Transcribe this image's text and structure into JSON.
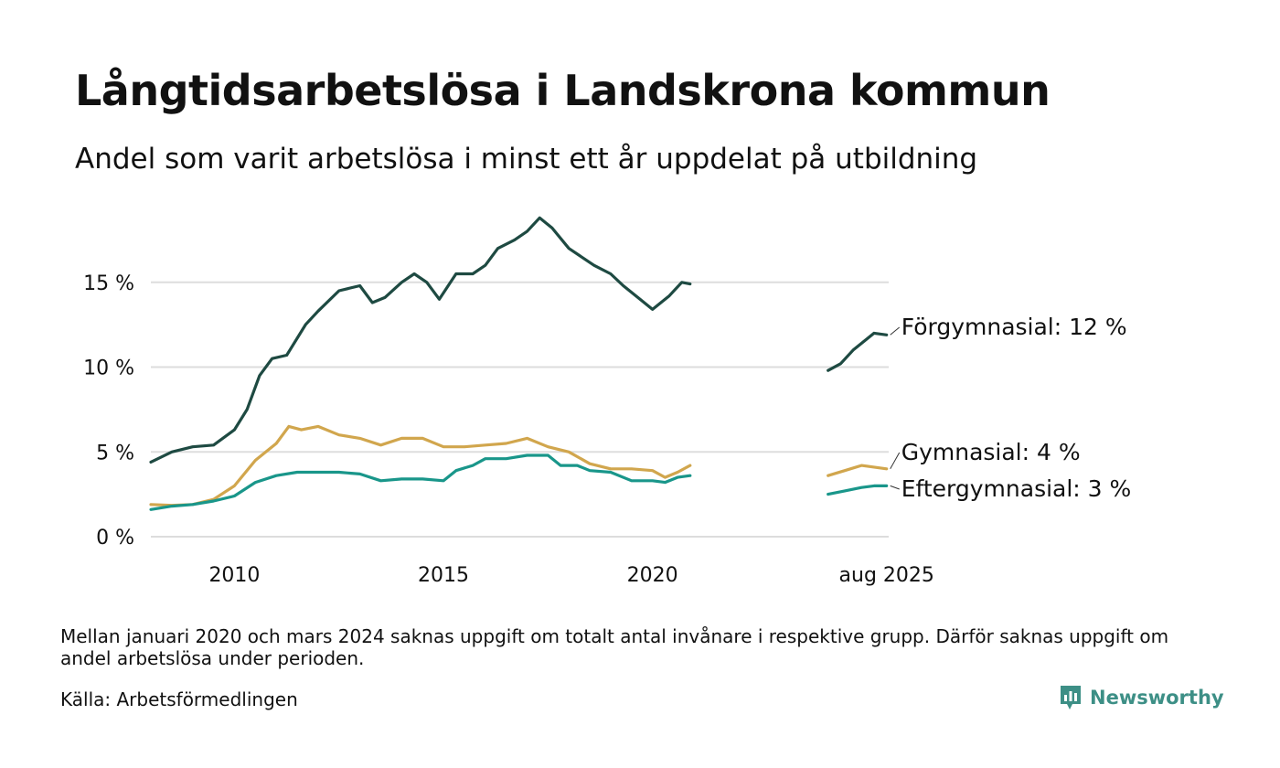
{
  "header": {
    "title": "Långtidsarbetslösa i Landskrona kommun",
    "subtitle": "Andel som varit arbetslösa i minst ett år uppdelat på utbildning"
  },
  "footer": {
    "note": "Mellan januari 2020 och mars 2024 saknas uppgift om totalt antal invånare i respektive grupp. Därför saknas uppgift om andel arbetslösa under perioden.",
    "source": "Källa: Arbetsförmedlingen",
    "brand": "Newsworthy"
  },
  "colors": {
    "forgymnasial": "#1e4a42",
    "gymnasial": "#d1a64d",
    "eftergymnasial": "#19968a",
    "grid": "#dddddd",
    "brand": "#3d8f86"
  },
  "chart_data": {
    "type": "line",
    "x_unit": "decimal year",
    "xlim": [
      2008.0,
      2025.65
    ],
    "ylim": [
      0,
      20
    ],
    "grid": true,
    "legend": "inline end labels",
    "x_ticks": [
      {
        "value": 2010,
        "label": "2010"
      },
      {
        "value": 2015,
        "label": "2015"
      },
      {
        "value": 2020,
        "label": "2020"
      },
      {
        "value": 2025.6,
        "label": "aug 2025"
      }
    ],
    "y_ticks": [
      {
        "value": 0,
        "label": "0 %"
      },
      {
        "value": 5,
        "label": "5 %"
      },
      {
        "value": 10,
        "label": "10 %"
      },
      {
        "value": 15,
        "label": "15 %"
      }
    ],
    "series": [
      {
        "name": "Förgymnasial",
        "end_label": "Förgymnasial: 12 %",
        "color_key": "forgymnasial",
        "segments": [
          [
            [
              2008.0,
              4.4
            ],
            [
              2008.5,
              5.0
            ],
            [
              2009.0,
              5.3
            ],
            [
              2009.5,
              5.4
            ],
            [
              2010.0,
              6.3
            ],
            [
              2010.3,
              7.5
            ],
            [
              2010.6,
              9.5
            ],
            [
              2010.9,
              10.5
            ],
            [
              2011.25,
              10.7
            ],
            [
              2011.7,
              12.5
            ],
            [
              2012.0,
              13.3
            ],
            [
              2012.5,
              14.5
            ],
            [
              2013.0,
              14.8
            ],
            [
              2013.3,
              13.8
            ],
            [
              2013.6,
              14.1
            ],
            [
              2014.0,
              15.0
            ],
            [
              2014.3,
              15.5
            ],
            [
              2014.6,
              15.0
            ],
            [
              2014.9,
              14.0
            ],
            [
              2015.3,
              15.5
            ],
            [
              2015.7,
              15.5
            ],
            [
              2016.0,
              16.0
            ],
            [
              2016.3,
              17.0
            ],
            [
              2016.7,
              17.5
            ],
            [
              2017.0,
              18.0
            ],
            [
              2017.3,
              18.8
            ],
            [
              2017.6,
              18.2
            ],
            [
              2018.0,
              17.0
            ],
            [
              2018.3,
              16.5
            ],
            [
              2018.6,
              16.0
            ],
            [
              2019.0,
              15.5
            ],
            [
              2019.3,
              14.8
            ],
            [
              2019.7,
              14.0
            ],
            [
              2020.0,
              13.4
            ],
            [
              2020.4,
              14.2
            ],
            [
              2020.7,
              15.0
            ],
            [
              2020.9,
              14.9
            ]
          ],
          [
            [
              2024.2,
              9.8
            ],
            [
              2024.5,
              10.2
            ],
            [
              2024.8,
              11.0
            ],
            [
              2025.1,
              11.6
            ],
            [
              2025.3,
              12.0
            ],
            [
              2025.6,
              11.9
            ]
          ]
        ]
      },
      {
        "name": "Gymnasial",
        "end_label": "Gymnasial:  4 %",
        "color_key": "gymnasial",
        "segments": [
          [
            [
              2008.0,
              1.9
            ],
            [
              2008.5,
              1.85
            ],
            [
              2009.0,
              1.9
            ],
            [
              2009.5,
              2.2
            ],
            [
              2010.0,
              3.0
            ],
            [
              2010.5,
              4.5
            ],
            [
              2011.0,
              5.5
            ],
            [
              2011.3,
              6.5
            ],
            [
              2011.6,
              6.3
            ],
            [
              2012.0,
              6.5
            ],
            [
              2012.5,
              6.0
            ],
            [
              2013.0,
              5.8
            ],
            [
              2013.5,
              5.4
            ],
            [
              2014.0,
              5.8
            ],
            [
              2014.5,
              5.8
            ],
            [
              2015.0,
              5.3
            ],
            [
              2015.5,
              5.3
            ],
            [
              2016.0,
              5.4
            ],
            [
              2016.5,
              5.5
            ],
            [
              2017.0,
              5.8
            ],
            [
              2017.5,
              5.3
            ],
            [
              2018.0,
              5.0
            ],
            [
              2018.5,
              4.3
            ],
            [
              2019.0,
              4.0
            ],
            [
              2019.5,
              4.0
            ],
            [
              2020.0,
              3.9
            ],
            [
              2020.3,
              3.5
            ],
            [
              2020.6,
              3.8
            ],
            [
              2020.9,
              4.2
            ]
          ],
          [
            [
              2024.2,
              3.6
            ],
            [
              2024.6,
              3.9
            ],
            [
              2025.0,
              4.2
            ],
            [
              2025.3,
              4.1
            ],
            [
              2025.6,
              4.0
            ]
          ]
        ]
      },
      {
        "name": "Eftergymnasial",
        "end_label": "Eftergymnasial:  3 %",
        "color_key": "eftergymnasial",
        "segments": [
          [
            [
              2008.0,
              1.6
            ],
            [
              2008.5,
              1.8
            ],
            [
              2009.0,
              1.9
            ],
            [
              2009.5,
              2.1
            ],
            [
              2010.0,
              2.4
            ],
            [
              2010.5,
              3.2
            ],
            [
              2011.0,
              3.6
            ],
            [
              2011.5,
              3.8
            ],
            [
              2012.0,
              3.8
            ],
            [
              2012.5,
              3.8
            ],
            [
              2013.0,
              3.7
            ],
            [
              2013.5,
              3.3
            ],
            [
              2014.0,
              3.4
            ],
            [
              2014.5,
              3.4
            ],
            [
              2015.0,
              3.3
            ],
            [
              2015.3,
              3.9
            ],
            [
              2015.7,
              4.2
            ],
            [
              2016.0,
              4.6
            ],
            [
              2016.5,
              4.6
            ],
            [
              2017.0,
              4.8
            ],
            [
              2017.5,
              4.8
            ],
            [
              2017.8,
              4.2
            ],
            [
              2018.2,
              4.2
            ],
            [
              2018.5,
              3.9
            ],
            [
              2019.0,
              3.8
            ],
            [
              2019.5,
              3.3
            ],
            [
              2020.0,
              3.3
            ],
            [
              2020.3,
              3.2
            ],
            [
              2020.6,
              3.5
            ],
            [
              2020.9,
              3.6
            ]
          ],
          [
            [
              2024.2,
              2.5
            ],
            [
              2024.6,
              2.7
            ],
            [
              2025.0,
              2.9
            ],
            [
              2025.3,
              3.0
            ],
            [
              2025.6,
              3.0
            ]
          ]
        ]
      }
    ]
  }
}
